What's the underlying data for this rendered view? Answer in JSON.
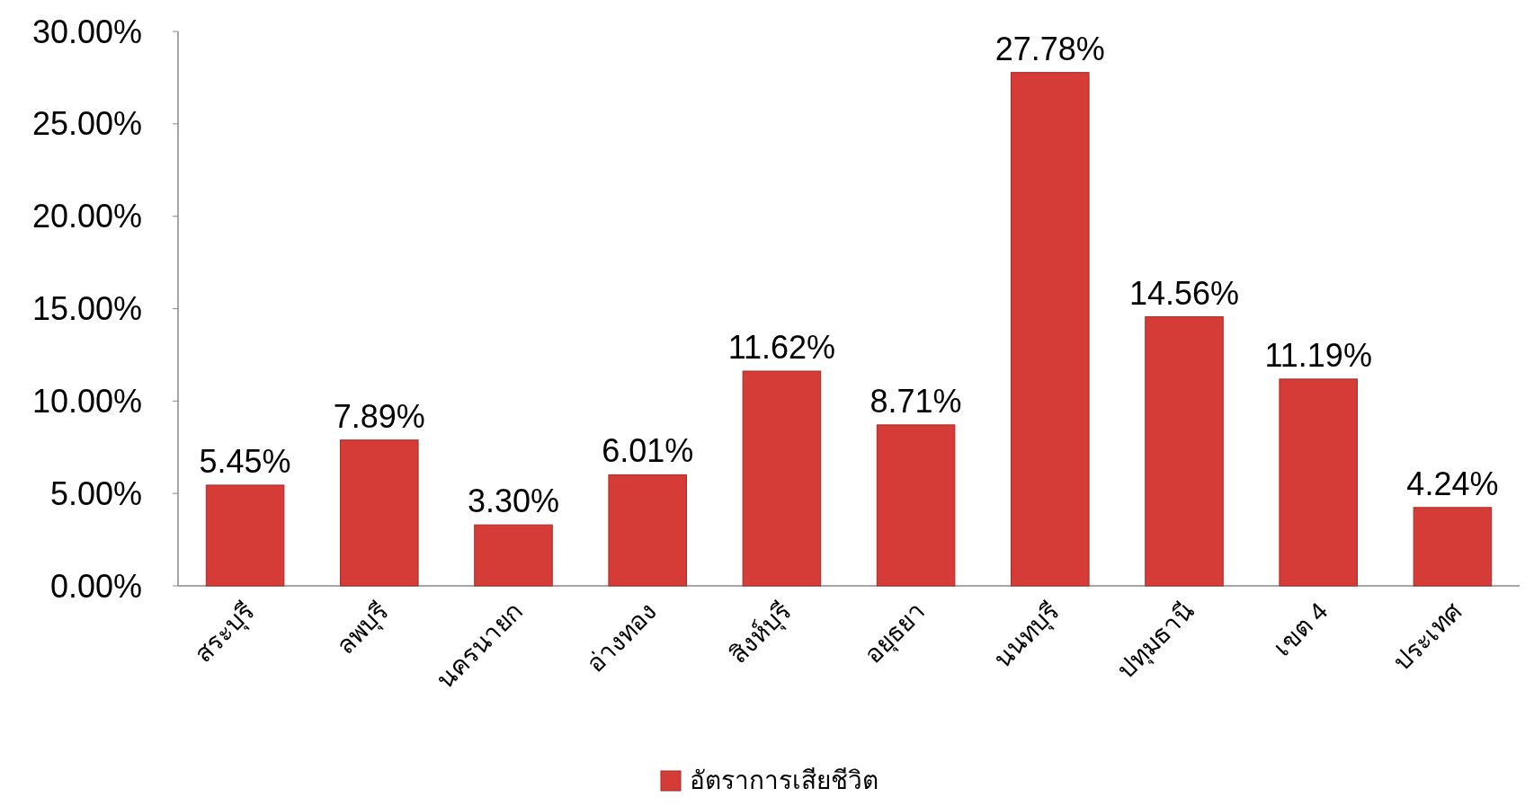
{
  "chart_data": {
    "type": "bar",
    "categories": [
      "สระบุรี",
      "ลพบุรี",
      "นครนายก",
      "อ่างทอง",
      "สิงห์บุรี",
      "อยุธยา",
      "นนทบุรี",
      "ปทุมธานี",
      "เขต 4",
      "ประเทศ"
    ],
    "series": [
      {
        "name": "อัตราการเสียชีวิต",
        "color": "#d63c37",
        "values": [
          5.45,
          7.89,
          3.3,
          6.01,
          11.62,
          8.71,
          27.78,
          14.56,
          11.19,
          4.24
        ],
        "value_labels": [
          "5.45%",
          "7.89%",
          "3.30%",
          "6.01%",
          "11.62%",
          "8.71%",
          "27.78%",
          "14.56%",
          "11.19%",
          "4.24%"
        ]
      }
    ],
    "ylim": [
      0,
      30
    ],
    "yticks": [
      {
        "value": 0,
        "label": "0.00%"
      },
      {
        "value": 5,
        "label": "5.00%"
      },
      {
        "value": 10,
        "label": "10.00%"
      },
      {
        "value": 15,
        "label": "15.00%"
      },
      {
        "value": 20,
        "label": "20.00%"
      },
      {
        "value": 25,
        "label": "25.00%"
      },
      {
        "value": 30,
        "label": "30.00%"
      }
    ],
    "grid": false,
    "legend": "bottom"
  }
}
